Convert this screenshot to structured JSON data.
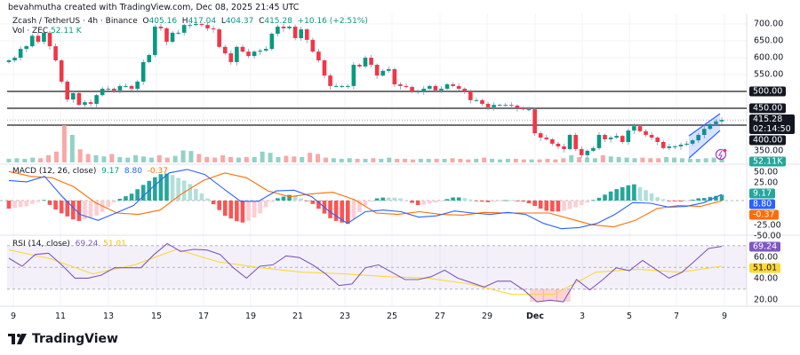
{
  "credit": "bevahmutha created with TradingView.com, Dec 08, 2025 21:45 UTC",
  "legend": {
    "symbol": "Zcash / TetherUS · 4h · Binance",
    "o_label": "O",
    "o": "405.16",
    "h_label": "H",
    "h": "417.04",
    "l_label": "L",
    "l": "404.37",
    "c_label": "C",
    "c": "415.28",
    "change": "+10.16 (+2.51%)",
    "vol_label": "Vol · ZEC",
    "vol": "52.11 K",
    "macd_label": "MACD (12, 26, close)",
    "macd_hist": "9.17",
    "macd_line": "8.80",
    "macd_signal": "-0.37",
    "rsi_label": "RSI (14, close)",
    "rsi": "69.24",
    "rsi_ma": "51.01"
  },
  "colors": {
    "up": "#089981",
    "down": "#f23645",
    "wick": "#7b8fd6",
    "macd": "#2962ff",
    "signal": "#ff6d00",
    "rsi": "#7e57c2",
    "rsi_ma": "#fdd835",
    "channel": "#2962ff",
    "levels": "#555555"
  },
  "chart_data": [
    {
      "type": "candlestick",
      "panel": "price",
      "x_ticks": [
        "9",
        "11",
        "13",
        "15",
        "17",
        "19",
        "21",
        "23",
        "25",
        "27",
        "29",
        "Dec",
        "3",
        "5",
        "7",
        "9"
      ],
      "y_ticks": [
        "700.00",
        "650.00",
        "600.00",
        "550.00",
        "350.00"
      ],
      "ylim": [
        335,
        720
      ],
      "close": [
        592,
        600,
        626,
        634,
        665,
        647,
        674,
        634,
        592,
        529,
        476,
        495,
        460,
        468,
        463,
        489,
        508,
        508,
        503,
        516,
        516,
        508,
        529,
        587,
        608,
        692,
        687,
        647,
        674,
        674,
        697,
        697,
        700,
        697,
        687,
        684,
        632,
        613,
        587,
        632,
        618,
        605,
        618,
        621,
        626,
        671,
        692,
        687,
        692,
        658,
        684,
        653,
        618,
        592,
        547,
        516,
        516,
        516,
        516,
        579,
        574,
        600,
        579,
        547,
        561,
        566,
        521,
        516,
        513,
        500,
        500,
        508,
        516,
        503,
        508,
        521,
        516,
        508,
        500,
        474,
        474,
        463,
        453,
        460,
        460,
        460,
        458,
        450,
        447,
        447,
        376,
        363,
        358,
        345,
        337,
        329,
        371,
        329,
        311,
        324,
        332,
        371,
        358,
        363,
        368,
        350,
        384,
        397,
        382,
        371,
        363,
        350,
        332,
        337,
        337,
        342,
        345,
        355,
        371,
        389,
        403,
        411,
        415.28
      ],
      "horizontal_levels": [
        {
          "value": 500,
          "label": "500.00"
        },
        {
          "value": 450,
          "label": "450.00"
        },
        {
          "value": 400,
          "label": "400.00"
        }
      ],
      "last_price": {
        "value": 415.28,
        "label": "415.28",
        "countdown": "02:14:50"
      },
      "ascending_channel": {
        "lower": [
          302,
          384
        ],
        "upper": [
          368,
          434
        ]
      },
      "grid": true
    },
    {
      "type": "bar",
      "panel": "volume",
      "values_k": [
        30,
        35,
        30,
        40,
        35,
        60,
        90,
        310,
        230,
        110,
        70,
        60,
        50,
        70,
        45,
        40,
        60,
        50,
        40,
        60,
        40,
        55,
        100,
        95,
        70,
        45,
        40,
        60,
        45,
        40,
        45,
        45,
        90,
        80,
        45,
        55,
        50,
        45,
        80,
        70,
        40,
        35,
        30,
        35,
        30,
        30,
        35,
        30,
        40,
        30,
        30,
        25,
        30,
        30,
        30,
        30,
        35,
        30,
        25,
        30,
        40,
        30,
        25,
        30,
        30,
        25,
        25,
        25,
        30,
        25,
        35,
        60,
        45,
        40,
        35,
        60,
        50,
        45,
        40,
        35,
        40,
        35,
        35,
        45,
        40,
        35,
        30,
        30,
        35,
        40,
        52.11
      ],
      "last_label": "52.11K"
    },
    {
      "type": "line",
      "panel": "macd",
      "y_ticks": [
        "50.00",
        "25.00",
        "-25.00",
        "-50.00"
      ],
      "ylim": [
        -55,
        55
      ],
      "series": [
        {
          "name": "MACD",
          "values": [
            29,
            27,
            35,
            5.5,
            -20,
            -28.6,
            -18,
            -7,
            18,
            40,
            45,
            37.6,
            18,
            -1,
            -1,
            14,
            15,
            5.5,
            -16,
            -33,
            -16,
            -13.7,
            -16,
            -24,
            -22,
            -15,
            -18,
            -20,
            -17,
            -20,
            -33,
            -40.6,
            -39,
            -33,
            -20,
            -3,
            -3.8,
            -9.4,
            -8.5,
            -3,
            8.8
          ]
        },
        {
          "name": "Signal",
          "values": [
            42,
            35,
            33,
            20,
            -3,
            -18,
            -20,
            -13.7,
            9.8,
            29,
            40,
            33,
            14,
            5.5,
            9.8,
            12,
            1.3,
            -18,
            -20,
            -16,
            -20,
            -21,
            -17,
            -18,
            -18,
            -18,
            -26.5,
            -35,
            -38,
            -28.6,
            -11.5,
            -7,
            -8.5,
            -0.37
          ]
        }
      ],
      "tags": {
        "hist": "9.17",
        "macd": "8.80",
        "signal": "-0.37"
      }
    },
    {
      "type": "line",
      "panel": "rsi",
      "y_ticks": [
        "60.00",
        "40.00",
        "20.00"
      ],
      "ylim": [
        15,
        80
      ],
      "bands": [
        30,
        50,
        70
      ],
      "series": [
        {
          "name": "RSI",
          "values": [
            58.3,
            51,
            61.8,
            63,
            52.3,
            40,
            40,
            42.8,
            49.6,
            49.6,
            49.6,
            61.8,
            71.9,
            64.6,
            66.5,
            65.9,
            61.8,
            49.6,
            40,
            51,
            52.3,
            60.5,
            59,
            52.3,
            44,
            33.3,
            34.7,
            49.6,
            52.3,
            45.5,
            38.7,
            38.7,
            41.4,
            47.4,
            40,
            36,
            31.9,
            37.3,
            37.3,
            29.2,
            18.3,
            19.7,
            18.3,
            38.7,
            29.2,
            38.7,
            49.6,
            46.9,
            56.4,
            48.2,
            40,
            45.5,
            56.4,
            67.3,
            69.24
          ]
        },
        {
          "name": "RSI-based MA",
          "values": [
            66,
            57.8,
            44,
            52.3,
            66.5,
            55,
            49.6,
            45.5,
            44,
            41.4,
            40,
            34.6,
            25.1,
            25.1,
            45.5,
            48.2,
            45.5,
            51.01
          ]
        }
      ],
      "tags": {
        "rsi": "69.24",
        "ma": "51.01"
      }
    }
  ],
  "footer": {
    "brand": "TradingView"
  }
}
